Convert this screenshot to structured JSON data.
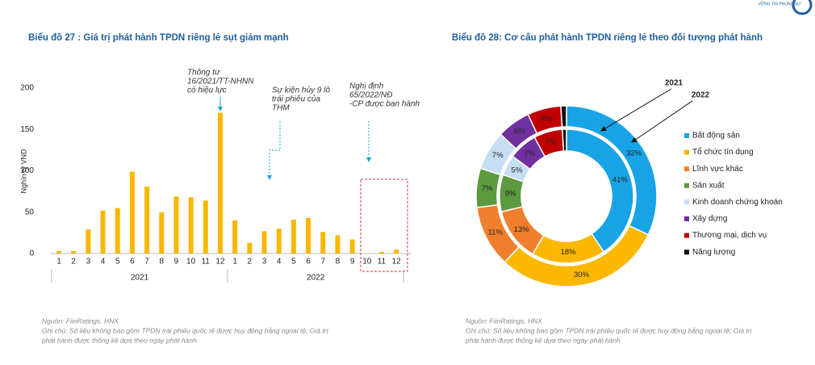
{
  "logo_text": "VỮNG TIN PHỤNG SỰ",
  "chart_data": [
    {
      "type": "bar",
      "title": "Biểu đồ 27 : Giá trị phát hành TPDN riêng lẻ sụt giảm mạnh",
      "y_label": "Nghìn tỷ VND",
      "categories": [
        "1",
        "2",
        "3",
        "4",
        "5",
        "6",
        "7",
        "8",
        "9",
        "10",
        "11",
        "12",
        "1",
        "2",
        "3",
        "4",
        "5",
        "6",
        "7",
        "8",
        "9",
        "10",
        "11",
        "12"
      ],
      "groups": [
        "2021",
        "2022"
      ],
      "values": [
        3,
        3,
        29,
        52,
        55,
        99,
        81,
        50,
        69,
        68,
        64,
        170,
        40,
        13,
        27,
        30,
        41,
        43,
        26,
        22,
        17,
        0,
        2,
        5
      ],
      "color": "#f9b700",
      "ylim": [
        0,
        200
      ],
      "yticks": [
        0,
        50,
        100,
        150,
        200
      ],
      "annotations": [
        [
          "Thông tư",
          "16/2021/TT-NHNN",
          "có hiệu lực"
        ],
        [
          "Sự kiện hủy 9 lô",
          "trái phiếu của",
          "THM"
        ],
        [
          "Nghị định",
          "65/2022/NĐ",
          "-CP được ban hành"
        ]
      ],
      "source": "Nguồn: FiinRatings, HNX",
      "notes": [
        "Ghi chú: Số liệu không bao gồm TPDN trái phiếu quốc tế được huy động bằng ngoại tệ; Giá trị",
        "phát hành được thống kê dựa theo ngày phát hành"
      ]
    },
    {
      "type": "doughnut",
      "title": "Biểu đồ 28: Cơ cấu phát hành TPDN riêng lẻ theo đối tượng phát hành",
      "categories": [
        "Bất động sản",
        "Tổ chức tín dụng",
        "Lĩnh vực khác",
        "Sản xuất",
        "Kinh doanh chứng khoán",
        "Xây dựng",
        "Thương mại, dịch vụ",
        "Năng lượng"
      ],
      "colors": [
        "#18a3e6",
        "#fbb800",
        "#f07f2d",
        "#5b9a3e",
        "#c5def3",
        "#7030a0",
        "#c00000",
        "#111111"
      ],
      "series": [
        {
          "name": "2021",
          "values": [
            41,
            18,
            13,
            9,
            5,
            7,
            7,
            1
          ],
          "value_labels": [
            "41%",
            "18%",
            "13%",
            "9%",
            "5%",
            "7%",
            "7%",
            null
          ]
        },
        {
          "name": "2022",
          "values": [
            32,
            30,
            11,
            7,
            7,
            6,
            6,
            1
          ],
          "value_labels": [
            "32%",
            "30%",
            "11%",
            "7%",
            "7%",
            "6%",
            "6%",
            null
          ]
        }
      ],
      "source": "Nguồn: FiinRatings, HNX",
      "notes": [
        "Ghi chú: Số liệu không bao gồm TPDN trái phiếu quốc tế được huy động bằng ngoại tệ; Giá trị",
        "phát hành được thống kê dựa theo ngày phát hành"
      ]
    }
  ]
}
